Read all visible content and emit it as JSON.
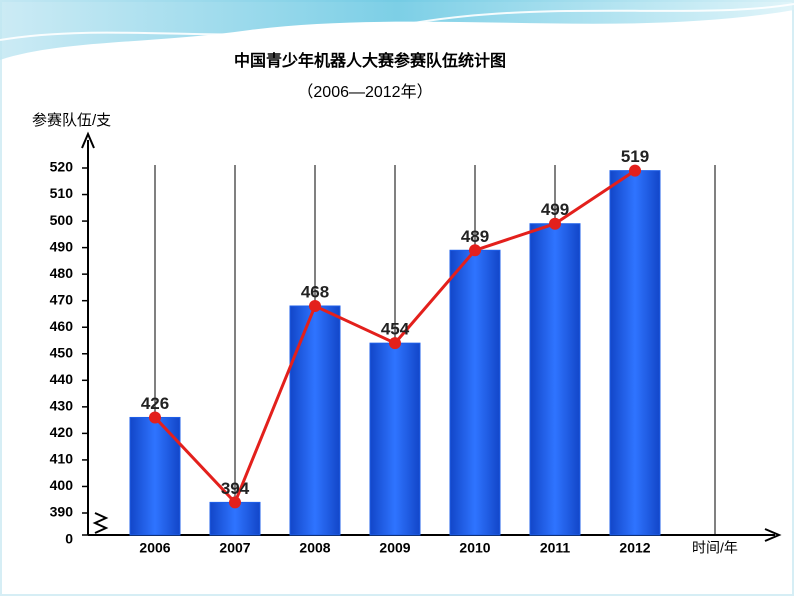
{
  "chart_data": {
    "type": "bar-line",
    "title": "中国青少年机器人大赛参赛队伍统计图",
    "subtitle": "（2006—2012年）",
    "y_axis_label": "参赛队伍/支",
    "x_axis_label": "时间/年",
    "categories": [
      "2006",
      "2007",
      "2008",
      "2009",
      "2010",
      "2011",
      "2012"
    ],
    "values": [
      426,
      394,
      468,
      454,
      489,
      499,
      519
    ],
    "bar_color": "#1f5fe8",
    "line_color": "#e3201c",
    "ylim": [
      0,
      520
    ],
    "axis_break": [
      0,
      390
    ],
    "yticks": [
      0,
      390,
      400,
      410,
      420,
      430,
      440,
      450,
      460,
      470,
      480,
      490,
      500,
      510,
      520
    ],
    "grid": true
  }
}
